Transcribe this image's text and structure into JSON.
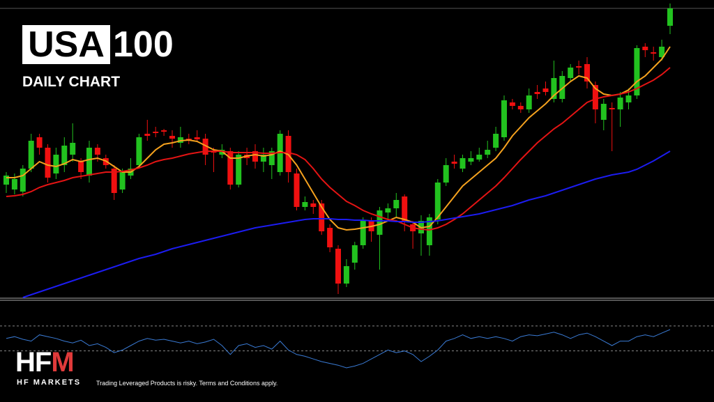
{
  "header": {
    "title_boxed": "USA",
    "title_rest": "100",
    "subtitle": "DAILY CHART"
  },
  "chart_data": {
    "type": "candlestick",
    "open": [
      162,
      155,
      152,
      185,
      230,
      215,
      178,
      190,
      205,
      195,
      175,
      215,
      200,
      185,
      155,
      175,
      190,
      235,
      238,
      240,
      232,
      222,
      228,
      230,
      228,
      210,
      205,
      210,
      162,
      205,
      210,
      195,
      190,
      180,
      232,
      178,
      130,
      135,
      135,
      100,
      70,
      20,
      50,
      75,
      110,
      90,
      122,
      128,
      145,
      105,
      92,
      75,
      112,
      165,
      195,
      185,
      195,
      198,
      205,
      215,
      230,
      280,
      275,
      270,
      295,
      300,
      285,
      285,
      315,
      332,
      335,
      305,
      255,
      272,
      270,
      280,
      290,
      360,
      352,
      345,
      390
    ],
    "high": [
      180,
      178,
      190,
      235,
      235,
      220,
      215,
      230,
      250,
      200,
      225,
      220,
      205,
      190,
      185,
      200,
      235,
      255,
      245,
      242,
      240,
      245,
      235,
      240,
      235,
      215,
      220,
      215,
      210,
      215,
      220,
      215,
      215,
      240,
      240,
      185,
      145,
      140,
      140,
      105,
      75,
      55,
      80,
      115,
      115,
      130,
      135,
      150,
      148,
      110,
      118,
      120,
      170,
      200,
      205,
      205,
      210,
      215,
      225,
      245,
      290,
      285,
      280,
      300,
      305,
      310,
      340,
      325,
      335,
      340,
      345,
      310,
      285,
      280,
      295,
      300,
      362,
      365,
      360,
      370,
      422
    ],
    "low": [
      150,
      148,
      145,
      180,
      205,
      165,
      170,
      180,
      195,
      170,
      165,
      195,
      185,
      140,
      150,
      170,
      185,
      225,
      230,
      232,
      215,
      215,
      220,
      225,
      190,
      180,
      200,
      155,
      158,
      190,
      185,
      180,
      170,
      175,
      165,
      125,
      125,
      120,
      90,
      65,
      5,
      15,
      40,
      70,
      80,
      40,
      110,
      115,
      95,
      70,
      60,
      60,
      105,
      160,
      185,
      180,
      190,
      195,
      200,
      210,
      225,
      270,
      265,
      265,
      285,
      290,
      280,
      280,
      310,
      320,
      300,
      250,
      240,
      210,
      245,
      270,
      285,
      345,
      340,
      340,
      378
    ],
    "close": [
      175,
      170,
      185,
      225,
      215,
      172,
      205,
      218,
      222,
      180,
      215,
      205,
      190,
      150,
      180,
      185,
      230,
      232,
      236,
      238,
      228,
      230,
      226,
      227,
      205,
      208,
      212,
      162,
      205,
      200,
      195,
      205,
      210,
      235,
      180,
      130,
      137,
      130,
      95,
      72,
      20,
      45,
      75,
      110,
      95,
      125,
      128,
      140,
      110,
      95,
      110,
      115,
      165,
      190,
      192,
      200,
      200,
      205,
      212,
      235,
      283,
      275,
      270,
      290,
      292,
      295,
      315,
      318,
      330,
      330,
      310,
      270,
      278,
      270,
      287,
      290,
      358,
      355,
      350,
      360,
      415
    ],
    "ylim": [
      0,
      415
    ],
    "up_color": "#22c21f",
    "down_color": "#f01010",
    "overlays": [
      {
        "color": "#f5a21e",
        "values": [
          172,
          172,
          175,
          185,
          195,
          190,
          188,
          192,
          198,
          195,
          198,
          200,
          196,
          188,
          180,
          180,
          188,
          200,
          212,
          220,
          222,
          225,
          226,
          224,
          218,
          212,
          210,
          200,
          200,
          203,
          205,
          203,
          205,
          210,
          205,
          190,
          170,
          150,
          130,
          112,
          100,
          97,
          98,
          100,
          102,
          105,
          110,
          115,
          112,
          108,
          100,
          102,
          115,
          130,
          145,
          160,
          170,
          180,
          190,
          200,
          215,
          232,
          245,
          258,
          268,
          278,
          290,
          300,
          310,
          318,
          315,
          300,
          292,
          290,
          292,
          298,
          310,
          318,
          330,
          342,
          360
        ]
      },
      {
        "color": "#e41414",
        "values": [
          145,
          146,
          148,
          152,
          158,
          162,
          165,
          168,
          172,
          174,
          176,
          178,
          180,
          180,
          181,
          183,
          186,
          190,
          195,
          198,
          200,
          203,
          206,
          208,
          210,
          210,
          210,
          208,
          208,
          208,
          208,
          207,
          207,
          208,
          208,
          205,
          198,
          185,
          170,
          158,
          148,
          138,
          132,
          125,
          120,
          116,
          112,
          110,
          105,
          100,
          98,
          97,
          100,
          105,
          112,
          120,
          130,
          140,
          150,
          160,
          172,
          185,
          198,
          210,
          222,
          232,
          242,
          250,
          260,
          270,
          280,
          285,
          288,
          290,
          292,
          295,
          300,
          306,
          312,
          320,
          330
        ]
      },
      {
        "color": "#1c1cf0",
        "values": [
          null,
          null,
          0,
          4,
          8,
          12,
          16,
          20,
          24,
          28,
          32,
          36,
          40,
          44,
          48,
          52,
          56,
          59,
          62,
          66,
          70,
          73,
          76,
          79,
          82,
          85,
          88,
          91,
          94,
          97,
          100,
          102,
          104,
          106,
          108,
          110,
          112,
          113,
          113,
          113,
          112,
          112,
          111,
          111,
          110,
          110,
          110,
          109,
          109,
          108,
          108,
          109,
          110,
          112,
          114,
          116,
          118,
          120,
          123,
          126,
          129,
          132,
          136,
          140,
          143,
          146,
          150,
          154,
          158,
          162,
          166,
          170,
          173,
          176,
          178,
          180,
          184,
          190,
          196,
          203,
          210
        ]
      }
    ],
    "indicator": {
      "color": "#3a7bd5",
      "ylim": [
        0,
        100
      ],
      "levels": [
        72,
        44
      ],
      "values": [
        58,
        60,
        57,
        55,
        62,
        60,
        58,
        55,
        53,
        56,
        50,
        52,
        48,
        42,
        45,
        50,
        55,
        58,
        56,
        57,
        55,
        53,
        55,
        52,
        54,
        57,
        50,
        40,
        50,
        52,
        48,
        50,
        46,
        55,
        45,
        40,
        38,
        35,
        32,
        30,
        28,
        25,
        27,
        30,
        35,
        40,
        45,
        42,
        44,
        40,
        32,
        38,
        45,
        55,
        58,
        62,
        58,
        60,
        58,
        60,
        58,
        55,
        60,
        62,
        61,
        63,
        65,
        62,
        58,
        62,
        64,
        60,
        55,
        50,
        55,
        55,
        60,
        62,
        60,
        64,
        68
      ]
    }
  },
  "footer": {
    "logo_white": "HF",
    "logo_red": "M",
    "brand": "HF MARKETS",
    "disclaimer": "Trading Leveraged Products is risky. Terms and Conditions apply."
  }
}
